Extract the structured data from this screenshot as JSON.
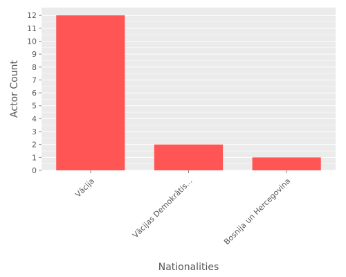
{
  "chart_data": {
    "type": "bar",
    "categories": [
      "Vācija",
      "Vācijas Demokrātis...",
      "Bosnija un Hercegovina"
    ],
    "values": [
      12,
      2,
      1
    ],
    "xlabel": "Nationalities",
    "ylabel": "Actor Count",
    "ylim": [
      0,
      12.6
    ],
    "yticks": [
      0,
      1,
      2,
      3,
      4,
      5,
      6,
      7,
      8,
      9,
      10,
      11,
      12
    ],
    "grid": true,
    "legend": "none",
    "colors": {
      "bar": "#ff5555",
      "panel": "#ebebeb",
      "grid": "#ffffff",
      "text": "#555555"
    }
  }
}
